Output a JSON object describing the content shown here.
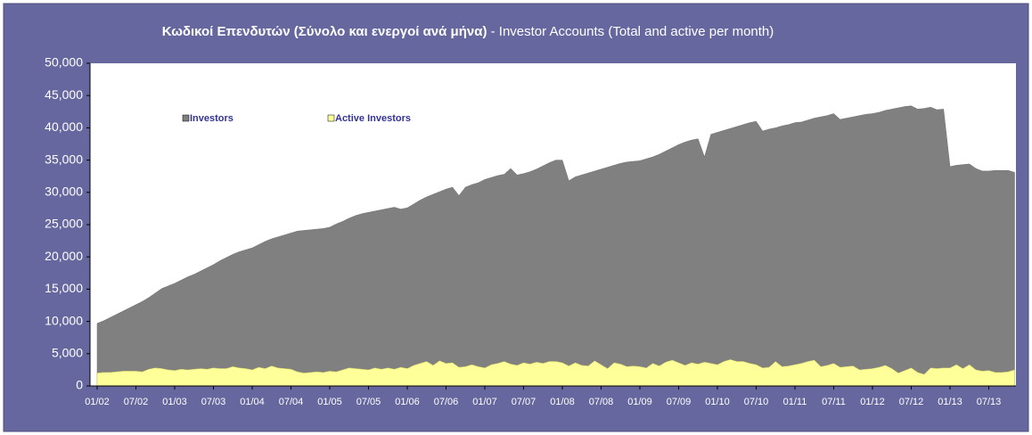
{
  "chart_data": {
    "type": "area",
    "title": "Κωδικοί Επενδυτών (Σύνολο και ενεργοί ανά μήνα)",
    "subtitle": "- Investor Accounts (Total and active per month)",
    "categories": [
      "01/02",
      null,
      null,
      null,
      null,
      null,
      "07/02",
      null,
      null,
      null,
      null,
      null,
      "01/03",
      null,
      null,
      null,
      null,
      null,
      "07/03",
      null,
      null,
      null,
      null,
      null,
      "01/04",
      null,
      null,
      null,
      null,
      null,
      "07/04",
      null,
      null,
      null,
      null,
      null,
      "01/05",
      null,
      null,
      null,
      null,
      null,
      "07/05",
      null,
      null,
      null,
      null,
      null,
      "01/06",
      null,
      null,
      null,
      null,
      null,
      "07/06",
      null,
      null,
      null,
      null,
      null,
      "01/07",
      null,
      null,
      null,
      null,
      null,
      "07/07",
      null,
      null,
      null,
      null,
      null,
      "01/08",
      null,
      null,
      null,
      null,
      null,
      "07/08",
      null,
      null,
      null,
      null,
      null,
      "01/09",
      null,
      null,
      null,
      null,
      null,
      "07/09",
      null,
      null,
      null,
      null,
      null,
      "01/10",
      null,
      null,
      null,
      null,
      null,
      "07/10",
      null,
      null,
      null,
      null,
      null,
      "01/11",
      null,
      null,
      null,
      null,
      null,
      "07/11",
      null,
      null,
      null,
      null,
      null,
      "01/12",
      null,
      null,
      null,
      null,
      null,
      "07/12",
      null,
      null,
      null,
      null,
      null,
      "01/13",
      null,
      null,
      null,
      null,
      null,
      "07/13",
      null,
      null,
      null,
      null
    ],
    "series": [
      {
        "name": "Investors",
        "color": "#808080",
        "values": [
          9700,
          10100,
          10600,
          11100,
          11600,
          12100,
          12600,
          13100,
          13700,
          14400,
          15100,
          15500,
          15900,
          16400,
          16900,
          17300,
          17800,
          18300,
          18800,
          19400,
          19900,
          20400,
          20800,
          21100,
          21400,
          21900,
          22400,
          22800,
          23100,
          23400,
          23700,
          24000,
          24100,
          24200,
          24300,
          24400,
          24600,
          25100,
          25500,
          26000,
          26400,
          26700,
          26900,
          27100,
          27300,
          27500,
          27700,
          27400,
          27600,
          28200,
          28800,
          29300,
          29700,
          30100,
          30500,
          30800,
          29500,
          30800,
          31200,
          31500,
          32000,
          32300,
          32600,
          32800,
          33700,
          32700,
          32900,
          33200,
          33600,
          34100,
          34600,
          35000,
          35000,
          31800,
          32400,
          32700,
          33000,
          33300,
          33600,
          33900,
          34200,
          34500,
          34700,
          34800,
          34900,
          35200,
          35500,
          35900,
          36400,
          36900,
          37400,
          37800,
          38100,
          38300,
          35500,
          39000,
          39300,
          39600,
          39900,
          40200,
          40500,
          40800,
          41000,
          39500,
          39800,
          40000,
          40300,
          40500,
          40800,
          40900,
          41200,
          41500,
          41700,
          41900,
          42200,
          41300,
          41500,
          41700,
          41900,
          42100,
          42200,
          42400,
          42700,
          42900,
          43100,
          43300,
          43400,
          42900,
          43000,
          43200,
          42800,
          42900,
          34000,
          34200,
          34300,
          34400,
          33700,
          33300,
          33300,
          33400,
          33400,
          33400,
          33100
        ]
      },
      {
        "name": "Active Investors",
        "color": "#ffff99",
        "values": [
          2000,
          2100,
          2100,
          2200,
          2300,
          2300,
          2300,
          2200,
          2600,
          2800,
          2700,
          2500,
          2400,
          2600,
          2500,
          2600,
          2700,
          2600,
          2800,
          2700,
          2700,
          3000,
          2800,
          2700,
          2500,
          2900,
          2700,
          3100,
          2800,
          2700,
          2600,
          2200,
          2000,
          2100,
          2200,
          2100,
          2300,
          2200,
          2500,
          2800,
          2700,
          2600,
          2500,
          2800,
          2600,
          2800,
          2600,
          2900,
          2700,
          3200,
          3500,
          3800,
          3200,
          3900,
          3500,
          3600,
          2900,
          3000,
          3300,
          3000,
          2800,
          3300,
          3500,
          3800,
          3400,
          3200,
          3600,
          3400,
          3700,
          3500,
          3800,
          3800,
          3600,
          3100,
          3600,
          3200,
          3100,
          3900,
          3300,
          2700,
          3600,
          3400,
          3000,
          3100,
          3000,
          2800,
          3500,
          3100,
          3700,
          4000,
          3600,
          3200,
          3600,
          3400,
          3700,
          3500,
          3300,
          3800,
          4100,
          3800,
          3800,
          3500,
          3300,
          2800,
          2900,
          3800,
          3000,
          3100,
          3300,
          3500,
          3800,
          4000,
          3000,
          3200,
          3500,
          2900,
          3000,
          3100,
          2500,
          2600,
          2700,
          2900,
          3200,
          2700,
          2000,
          2400,
          2800,
          2100,
          1800,
          2800,
          2700,
          2800,
          2800,
          3300,
          2700,
          3300,
          2500,
          2300,
          2400,
          2100,
          2100,
          2200,
          2500
        ]
      }
    ],
    "ylim": [
      0,
      50000
    ],
    "yticks": [
      0,
      {
        "value": 5000,
        "label": "5,000"
      },
      {
        "value": 10000,
        "label": "10,000"
      },
      {
        "value": 15000,
        "label": "15,000"
      },
      {
        "value": 20000,
        "label": "20,000"
      },
      {
        "value": 25000,
        "label": "25,000"
      },
      {
        "value": 30000,
        "label": "30,000"
      },
      {
        "value": 35000,
        "label": "35,000"
      },
      {
        "value": 40000,
        "label": "40,000"
      },
      {
        "value": 45000,
        "label": "45,000"
      },
      {
        "value": 50000,
        "label": "50,000"
      }
    ],
    "grid": false,
    "legend": "top-left"
  }
}
